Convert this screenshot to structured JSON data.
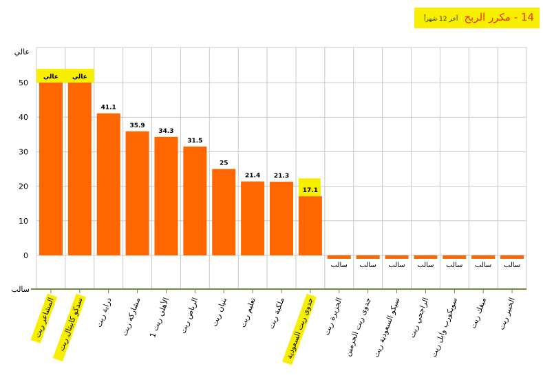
{
  "title": {
    "main": "14 - مكرر الربح",
    "sub": "آخر 12 شهراً"
  },
  "colors": {
    "bar": "#ff6600",
    "highlight": "#f7ee00",
    "title": "#e8340c",
    "grid": "#c8c8c8",
    "axis": "#6e8a3c"
  },
  "chart_data": {
    "type": "bar",
    "categories": [
      "المشاعر ريت",
      "سدكو كابيتال ريت",
      "دراية ريت",
      "مشاركة ريت",
      "الأهلي ريت 1",
      "الرياض ريت",
      "بنيان ريت",
      "تعليم ريت",
      "ملكية ريت",
      "جدوى ريت السعودية",
      "الجزيرة ريت",
      "جدوى ريت الحرمين",
      "سيكو السعودية ريت",
      "الراجحي ريت",
      "سويكورب وابل ريت",
      "ميفك ريت",
      "الخبير ريت"
    ],
    "values": [
      50,
      50,
      41.1,
      35.9,
      34.3,
      31.5,
      25,
      21.4,
      21.3,
      17.1,
      -1,
      -1,
      -1,
      -1,
      -1,
      -1,
      -1
    ],
    "labels": [
      "عالي",
      "عالي",
      "41.1",
      "35.9",
      "34.3",
      "31.5",
      "25",
      "21.4",
      "21.3",
      "17.1",
      "سالب",
      "سالب",
      "سالب",
      "سالب",
      "سالب",
      "سالب",
      "سالب"
    ],
    "highlighted": [
      true,
      true,
      false,
      false,
      false,
      false,
      false,
      false,
      false,
      true,
      false,
      false,
      false,
      false,
      false,
      false,
      false
    ],
    "y_ticks": [
      "0",
      "10",
      "20",
      "30",
      "40",
      "50"
    ],
    "y_top_label": "عالي",
    "y_bottom_label": "سالب",
    "ylim": [
      -10,
      60
    ],
    "grid": true
  }
}
